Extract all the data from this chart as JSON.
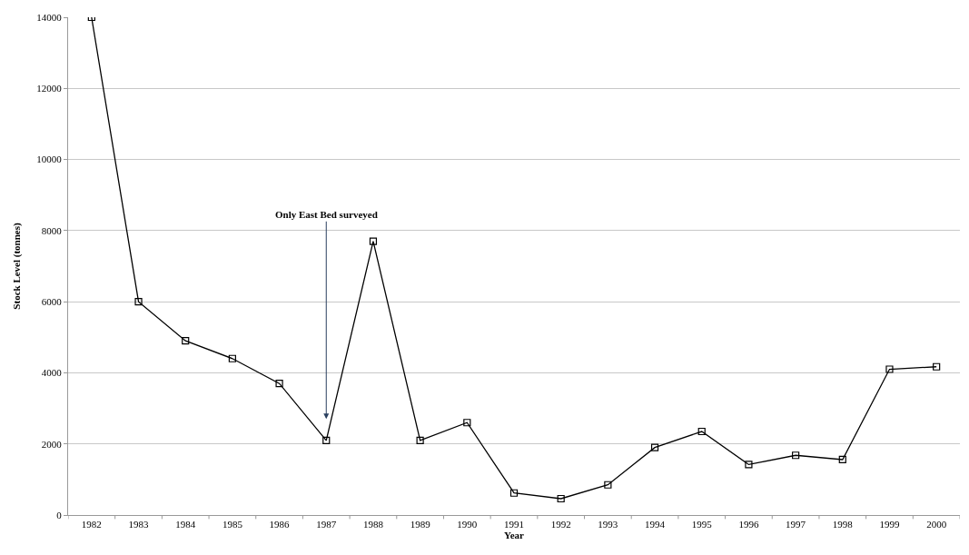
{
  "chart_data": {
    "type": "line",
    "xlabel": "Year",
    "ylabel": "Stock Level (tonnes)",
    "categories": [
      "1982",
      "1983",
      "1984",
      "1985",
      "1986",
      "1987",
      "1988",
      "1989",
      "1990",
      "1991",
      "1992",
      "1993",
      "1994",
      "1995",
      "1996",
      "1997",
      "1998",
      "1999",
      "2000"
    ],
    "series": [
      {
        "color": "#000000",
        "values": [
          14000,
          6000,
          4900,
          4400,
          3700,
          2100,
          7700,
          2100,
          2600,
          620,
          460,
          850,
          1900,
          2350,
          1420,
          1680,
          1560,
          4100,
          4170
        ]
      }
    ],
    "ylim": [
      0,
      14000
    ],
    "yticks": [
      0,
      2000,
      4000,
      6000,
      8000,
      10000,
      12000,
      14000
    ],
    "grid": "y",
    "marker": "square",
    "line_style": "solid",
    "annotations": [
      {
        "text": "Only East Bed surveyed",
        "x": "1987",
        "y": 2700
      }
    ]
  }
}
